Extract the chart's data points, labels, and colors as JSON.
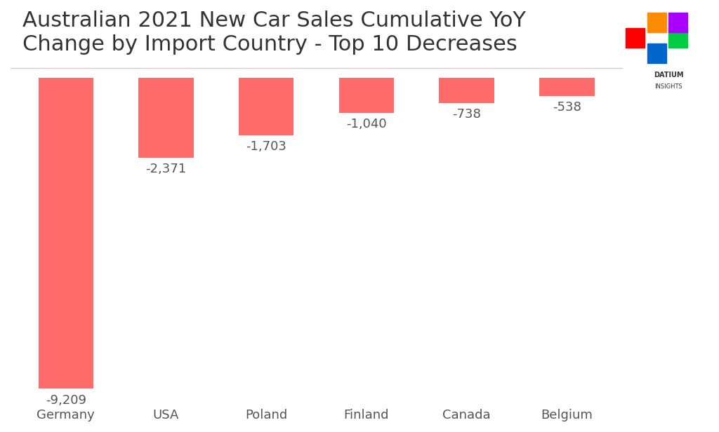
{
  "title": "Australian 2021 New Car Sales Cumulative YoY\nChange by Import Country - Top 10 Decreases",
  "categories": [
    "Germany",
    "USA",
    "Poland",
    "Finland",
    "Canada",
    "Belgium"
  ],
  "values": [
    -9209,
    -2371,
    -1703,
    -1040,
    -738,
    -538
  ],
  "labels": [
    "-9,209",
    "-2,371",
    "-1,703",
    "-1,040",
    "-738",
    "-538"
  ],
  "bar_color": "#FF6B6B",
  "background_color": "#FFFFFF",
  "title_fontsize": 22,
  "label_fontsize": 13,
  "tick_fontsize": 13,
  "ylim_min": -9700,
  "ylim_max": 300
}
